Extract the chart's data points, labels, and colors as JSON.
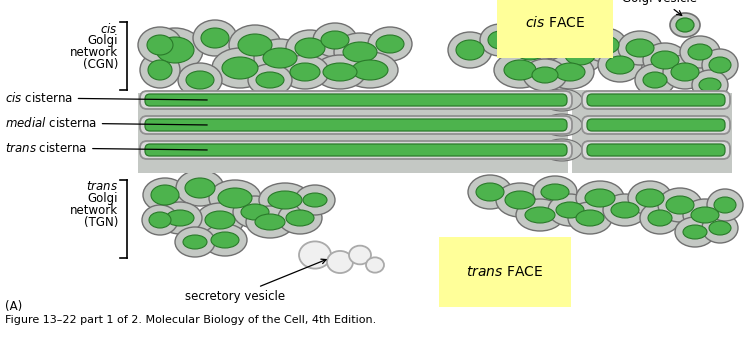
{
  "figure_caption": "Figure 13–22 part 1 of 2. Molecular Biology of the Cell, 4th Edition.",
  "label_A": "(A)",
  "bg_color": "#ffffff",
  "yellow_bg": "#ffff99",
  "golgi_green": "#4db34d",
  "golgi_green_dark": "#2a7a2a",
  "golgi_gray_light": "#d8d8d8",
  "golgi_gray_mid": "#b8bcb8",
  "golgi_gray_dark": "#909090",
  "golgi_gray_bg": "#c4c8c4",
  "membrane_edge": "#707070",
  "fontsize_main": 8.5,
  "fontsize_caption": 8.0,
  "cis_face_label": "cis FACE",
  "trans_face_label": "trans FACE",
  "golgi_vesicle_label": "Golgi vesicle",
  "cis_cisterna_label": "cis cisterna",
  "medial_cisterna_label": "medial cisterna",
  "trans_cisterna_label": "trans cisterna",
  "secretory_vesicle_label": "secretory vesicle",
  "cis_bracket_lines": [
    "cis",
    "Golgi",
    "network",
    "(CGN)"
  ],
  "trans_bracket_lines": [
    "trans",
    "Golgi",
    "network",
    "(TGN)"
  ]
}
